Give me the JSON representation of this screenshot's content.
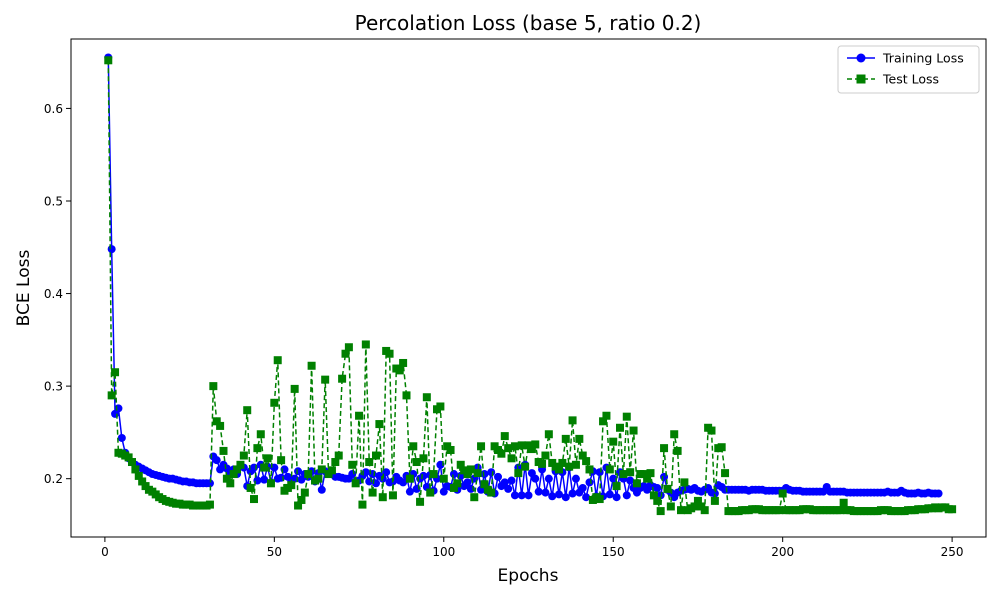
{
  "chart_data": {
    "type": "line",
    "title": "Percolation Loss (base 5, ratio 0.2)",
    "xlabel": "Epochs",
    "ylabel": "BCE Loss",
    "xlim": [
      -10,
      260
    ],
    "ylim": [
      0.137,
      0.675
    ],
    "xticks": [
      0,
      50,
      100,
      150,
      200,
      250
    ],
    "yticks": [
      0.2,
      0.3,
      0.4,
      0.5,
      0.6
    ],
    "grid": false,
    "legend": "top-right",
    "x_start": 1,
    "series": [
      {
        "name": "Training Loss",
        "color": "#0000ff",
        "linestyle": "solid",
        "marker": "circle",
        "values": [
          0.655,
          0.448,
          0.27,
          0.276,
          0.244,
          0.228,
          0.222,
          0.218,
          0.215,
          0.213,
          0.211,
          0.209,
          0.207,
          0.205,
          0.204,
          0.203,
          0.202,
          0.201,
          0.2,
          0.2,
          0.199,
          0.198,
          0.197,
          0.197,
          0.196,
          0.196,
          0.195,
          0.195,
          0.195,
          0.195,
          0.195,
          0.224,
          0.22,
          0.21,
          0.215,
          0.211,
          0.205,
          0.21,
          0.205,
          0.213,
          0.212,
          0.192,
          0.208,
          0.212,
          0.198,
          0.215,
          0.199,
          0.213,
          0.196,
          0.212,
          0.2,
          0.201,
          0.21,
          0.202,
          0.197,
          0.2,
          0.208,
          0.199,
          0.205,
          0.202,
          0.208,
          0.197,
          0.206,
          0.188,
          0.208,
          0.205,
          0.205,
          0.202,
          0.202,
          0.201,
          0.2,
          0.2,
          0.205,
          0.197,
          0.198,
          0.203,
          0.207,
          0.197,
          0.205,
          0.195,
          0.203,
          0.2,
          0.207,
          0.196,
          0.197,
          0.202,
          0.198,
          0.196,
          0.203,
          0.186,
          0.205,
          0.189,
          0.2,
          0.203,
          0.191,
          0.204,
          0.187,
          0.2,
          0.215,
          0.186,
          0.192,
          0.191,
          0.205,
          0.188,
          0.203,
          0.192,
          0.196,
          0.189,
          0.2,
          0.212,
          0.188,
          0.205,
          0.186,
          0.207,
          0.184,
          0.202,
          0.192,
          0.196,
          0.189,
          0.198,
          0.182,
          0.212,
          0.182,
          0.215,
          0.182,
          0.206,
          0.2,
          0.186,
          0.21,
          0.185,
          0.2,
          0.181,
          0.208,
          0.183,
          0.207,
          0.18,
          0.212,
          0.184,
          0.2,
          0.185,
          0.19,
          0.18,
          0.196,
          0.208,
          0.181,
          0.207,
          0.181,
          0.212,
          0.183,
          0.2,
          0.18,
          0.207,
          0.2,
          0.182,
          0.198,
          0.19,
          0.185,
          0.19,
          0.192,
          0.188,
          0.193,
          0.191,
          0.19,
          0.182,
          0.202,
          0.188,
          0.185,
          0.18,
          0.185,
          0.187,
          0.188,
          0.189,
          0.188,
          0.19,
          0.187,
          0.186,
          0.188,
          0.19,
          0.185,
          0.184,
          0.193,
          0.191,
          0.188,
          0.188,
          0.188,
          0.188,
          0.188,
          0.188,
          0.188,
          0.187,
          0.188,
          0.188,
          0.188,
          0.188,
          0.187,
          0.187,
          0.187,
          0.187,
          0.187,
          0.187,
          0.19,
          0.188,
          0.187,
          0.187,
          0.187,
          0.186,
          0.186,
          0.186,
          0.186,
          0.186,
          0.186,
          0.186,
          0.191,
          0.186,
          0.186,
          0.186,
          0.186,
          0.186,
          0.185,
          0.185,
          0.185,
          0.185,
          0.185,
          0.185,
          0.185,
          0.185,
          0.185,
          0.185,
          0.185,
          0.185,
          0.186,
          0.185,
          0.185,
          0.185,
          0.187,
          0.185,
          0.184,
          0.184,
          0.184,
          0.185,
          0.184,
          0.184,
          0.185,
          0.184,
          0.184,
          0.184
        ]
      },
      {
        "name": "Test Loss",
        "color": "#008000",
        "linestyle": "dashed",
        "marker": "square",
        "values": [
          0.652,
          0.29,
          0.315,
          0.228,
          0.227,
          0.225,
          0.223,
          0.218,
          0.21,
          0.203,
          0.197,
          0.192,
          0.188,
          0.186,
          0.183,
          0.18,
          0.178,
          0.176,
          0.175,
          0.174,
          0.173,
          0.173,
          0.172,
          0.172,
          0.172,
          0.171,
          0.171,
          0.171,
          0.171,
          0.171,
          0.172,
          0.3,
          0.262,
          0.257,
          0.23,
          0.2,
          0.195,
          0.205,
          0.21,
          0.215,
          0.225,
          0.274,
          0.19,
          0.178,
          0.233,
          0.248,
          0.212,
          0.222,
          0.195,
          0.282,
          0.328,
          0.22,
          0.187,
          0.19,
          0.193,
          0.297,
          0.171,
          0.177,
          0.185,
          0.205,
          0.322,
          0.198,
          0.2,
          0.21,
          0.307,
          0.205,
          0.209,
          0.218,
          0.225,
          0.308,
          0.335,
          0.342,
          0.215,
          0.195,
          0.268,
          0.172,
          0.345,
          0.218,
          0.185,
          0.225,
          0.259,
          0.18,
          0.338,
          0.335,
          0.182,
          0.319,
          0.317,
          0.325,
          0.29,
          0.2,
          0.235,
          0.218,
          0.175,
          0.222,
          0.288,
          0.185,
          0.205,
          0.275,
          0.278,
          0.2,
          0.235,
          0.231,
          0.19,
          0.195,
          0.215,
          0.209,
          0.205,
          0.21,
          0.18,
          0.206,
          0.235,
          0.194,
          0.188,
          0.185,
          0.235,
          0.231,
          0.227,
          0.246,
          0.233,
          0.222,
          0.235,
          0.206,
          0.236,
          0.213,
          0.236,
          0.232,
          0.237,
          0.218,
          0.216,
          0.225,
          0.248,
          0.217,
          0.213,
          0.21,
          0.217,
          0.243,
          0.213,
          0.263,
          0.215,
          0.243,
          0.225,
          0.219,
          0.21,
          0.177,
          0.18,
          0.178,
          0.262,
          0.268,
          0.21,
          0.24,
          0.192,
          0.255,
          0.205,
          0.267,
          0.207,
          0.252,
          0.195,
          0.205,
          0.205,
          0.2,
          0.206,
          0.182,
          0.176,
          0.165,
          0.233,
          0.189,
          0.17,
          0.248,
          0.23,
          0.166,
          0.196,
          0.166,
          0.168,
          0.17,
          0.176,
          0.17,
          0.166,
          0.255,
          0.252,
          0.176,
          0.233,
          0.234,
          0.206,
          0.165,
          0.165,
          0.165,
          0.165,
          0.166,
          0.166,
          0.166,
          0.167,
          0.167,
          0.167,
          0.166,
          0.166,
          0.166,
          0.166,
          0.166,
          0.166,
          0.184,
          0.166,
          0.166,
          0.166,
          0.166,
          0.166,
          0.167,
          0.167,
          0.167,
          0.166,
          0.166,
          0.166,
          0.166,
          0.166,
          0.166,
          0.166,
          0.166,
          0.166,
          0.174,
          0.166,
          0.166,
          0.165,
          0.165,
          0.165,
          0.165,
          0.165,
          0.165,
          0.165,
          0.165,
          0.166,
          0.166,
          0.166,
          0.165,
          0.165,
          0.165,
          0.165,
          0.165,
          0.166,
          0.166,
          0.166,
          0.167,
          0.167,
          0.167,
          0.168,
          0.168,
          0.169,
          0.168,
          0.169,
          0.169,
          0.167,
          0.167
        ]
      }
    ]
  }
}
